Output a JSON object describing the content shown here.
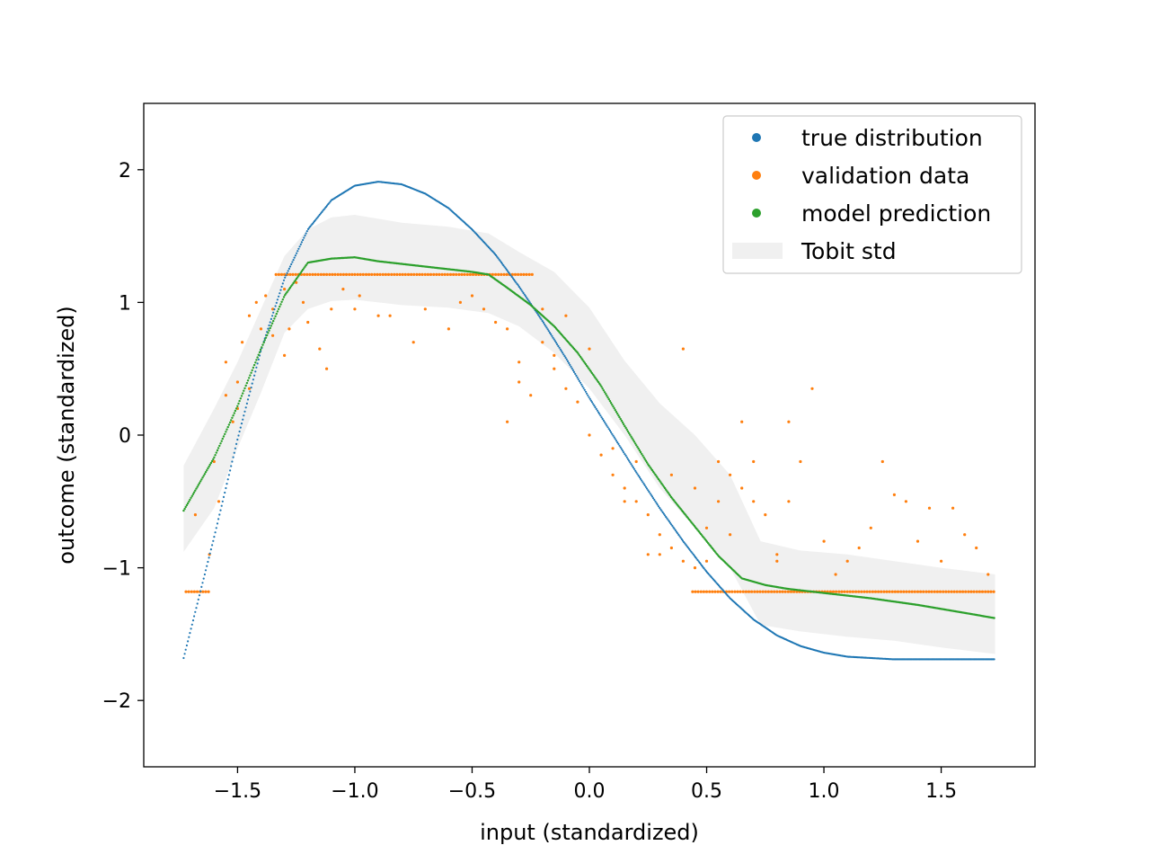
{
  "chart_data": {
    "type": "scatter",
    "xlabel": "input (standardized)",
    "ylabel": "outcome (standardized)",
    "xlim": [
      -1.9,
      1.9
    ],
    "ylim": [
      -2.5,
      2.5
    ],
    "x_ticks": [
      -1.5,
      -1.0,
      -0.5,
      0.0,
      0.5,
      1.0,
      1.5
    ],
    "x_tick_labels": [
      "−1.5",
      "−1.0",
      "−0.5",
      "0.0",
      "0.5",
      "1.0",
      "1.5"
    ],
    "y_ticks": [
      -2,
      -1,
      0,
      1,
      2
    ],
    "y_tick_labels": [
      "−2",
      "−1",
      "0",
      "1",
      "2"
    ],
    "grid": false,
    "legend_position": "top-right",
    "censor_upper": 1.21,
    "censor_lower": -1.18,
    "series": [
      {
        "name": "true distribution",
        "kind": "scatter-dense",
        "color": "#1f77b4",
        "x": [
          -1.73,
          -1.6,
          -1.5,
          -1.4,
          -1.3,
          -1.2,
          -1.1,
          -1.0,
          -0.9,
          -0.8,
          -0.7,
          -0.6,
          -0.5,
          -0.4,
          -0.3,
          -0.2,
          -0.1,
          0.0,
          0.1,
          0.2,
          0.3,
          0.4,
          0.5,
          0.6,
          0.7,
          0.8,
          0.9,
          1.0,
          1.1,
          1.2,
          1.3,
          1.4,
          1.5,
          1.6,
          1.73
        ],
        "y": [
          -1.68,
          -0.77,
          -0.03,
          0.64,
          1.18,
          1.55,
          1.77,
          1.88,
          1.91,
          1.89,
          1.82,
          1.71,
          1.55,
          1.36,
          1.12,
          0.86,
          0.58,
          0.28,
          0.0,
          -0.28,
          -0.55,
          -0.8,
          -1.03,
          -1.23,
          -1.39,
          -1.51,
          -1.59,
          -1.64,
          -1.67,
          -1.68,
          -1.69,
          -1.69,
          -1.69,
          -1.69,
          -1.69
        ]
      },
      {
        "name": "validation data",
        "kind": "scatter",
        "color": "#ff7f0e",
        "x": [
          -1.68,
          -1.6,
          -1.62,
          -1.55,
          -1.58,
          -1.52,
          -1.5,
          -1.48,
          -1.45,
          -1.42,
          -1.4,
          -1.38,
          -1.35,
          -1.3,
          -1.28,
          -1.25,
          -1.22,
          -1.2,
          -1.15,
          -1.12,
          -1.1,
          -1.05,
          -1.0,
          -0.98,
          -0.9,
          -0.85,
          -0.75,
          -0.7,
          -0.6,
          -0.55,
          -0.5,
          -0.45,
          -0.4,
          -0.35,
          -0.3,
          -0.25,
          -0.2,
          -0.15,
          -0.1,
          -0.05,
          0.0,
          0.05,
          0.1,
          0.15,
          0.2,
          0.25,
          0.3,
          0.35,
          0.4,
          0.45,
          0.5,
          0.55,
          0.6,
          0.65,
          0.7,
          0.75,
          0.8,
          0.85,
          0.9,
          1.0,
          1.1,
          1.2,
          1.3,
          1.4,
          1.5,
          1.6,
          1.7,
          -1.55,
          -1.45,
          -1.35,
          -0.3,
          -0.2,
          0.0,
          0.1,
          0.3,
          0.45,
          0.6,
          0.85,
          1.15,
          1.45,
          -1.5,
          -1.3,
          -0.1,
          0.2,
          0.4,
          0.55,
          0.7,
          0.95,
          1.25,
          1.55,
          -0.35,
          -0.15,
          0.15,
          0.25,
          0.35,
          0.5,
          0.65,
          0.8,
          1.05,
          1.35,
          1.65
        ],
        "y": [
          -0.6,
          -0.2,
          -0.9,
          0.3,
          -0.5,
          0.1,
          0.4,
          0.7,
          0.9,
          1.0,
          0.8,
          1.05,
          0.95,
          1.1,
          0.8,
          1.15,
          1.0,
          0.85,
          0.65,
          0.5,
          0.95,
          1.1,
          0.95,
          1.05,
          0.9,
          0.9,
          0.7,
          0.95,
          0.8,
          1.0,
          1.05,
          0.95,
          0.85,
          0.8,
          0.55,
          0.3,
          0.7,
          0.5,
          0.35,
          0.25,
          0.0,
          -0.15,
          -0.3,
          -0.4,
          -0.5,
          -0.6,
          -0.75,
          -0.85,
          -0.95,
          -1.0,
          -0.7,
          -0.5,
          -0.3,
          0.1,
          -0.2,
          -0.6,
          -0.9,
          -0.5,
          -0.2,
          -0.8,
          -0.95,
          -0.7,
          -0.45,
          -0.8,
          -0.95,
          -0.75,
          -1.05,
          0.55,
          0.35,
          0.75,
          0.4,
          0.95,
          0.65,
          -0.1,
          -0.9,
          -0.4,
          -0.75,
          0.1,
          -0.85,
          -0.55,
          0.2,
          0.6,
          0.9,
          -0.2,
          0.65,
          -0.2,
          -0.5,
          0.35,
          -0.2,
          -0.55,
          0.1,
          0.6,
          -0.5,
          -0.9,
          -0.3,
          -0.95,
          -0.4,
          -0.95,
          -1.05,
          -0.5,
          -0.85
        ]
      },
      {
        "name": "model prediction",
        "kind": "line-points",
        "color": "#2ca02c",
        "x": [
          -1.73,
          -1.6,
          -1.5,
          -1.4,
          -1.3,
          -1.2,
          -1.1,
          -1.0,
          -0.9,
          -0.8,
          -0.7,
          -0.6,
          -0.5,
          -0.43,
          -0.35,
          -0.25,
          -0.15,
          -0.05,
          0.05,
          0.15,
          0.25,
          0.35,
          0.45,
          0.55,
          0.65,
          0.75,
          0.85,
          1.0,
          1.2,
          1.4,
          1.6,
          1.73
        ],
        "y": [
          -0.57,
          -0.17,
          0.22,
          0.65,
          1.05,
          1.3,
          1.33,
          1.34,
          1.31,
          1.29,
          1.27,
          1.25,
          1.23,
          1.21,
          1.11,
          0.98,
          0.82,
          0.62,
          0.37,
          0.07,
          -0.22,
          -0.47,
          -0.69,
          -0.91,
          -1.08,
          -1.13,
          -1.16,
          -1.19,
          -1.23,
          -1.28,
          -1.34,
          -1.38
        ]
      }
    ],
    "band": {
      "name": "Tobit std",
      "color": "#f0f0f0",
      "x": [
        -1.73,
        -1.6,
        -1.5,
        -1.4,
        -1.3,
        -1.2,
        -1.1,
        -1.0,
        -0.8,
        -0.6,
        -0.43,
        -0.3,
        -0.15,
        0.0,
        0.15,
        0.3,
        0.45,
        0.6,
        0.73,
        0.9,
        1.1,
        1.3,
        1.5,
        1.73
      ],
      "upper": [
        -0.23,
        0.2,
        0.55,
        0.95,
        1.35,
        1.55,
        1.64,
        1.66,
        1.6,
        1.57,
        1.52,
        1.38,
        1.23,
        0.96,
        0.56,
        0.24,
        0.0,
        -0.3,
        -0.8,
        -0.87,
        -0.9,
        -0.95,
        -1.0,
        -1.05
      ],
      "lower": [
        -0.88,
        -0.55,
        -0.1,
        0.32,
        0.77,
        0.95,
        1.01,
        1.02,
        0.98,
        0.96,
        0.92,
        0.82,
        0.62,
        0.35,
        0.0,
        -0.4,
        -0.7,
        -1.0,
        -1.43,
        -1.48,
        -1.52,
        -1.55,
        -1.6,
        -1.65
      ]
    }
  }
}
